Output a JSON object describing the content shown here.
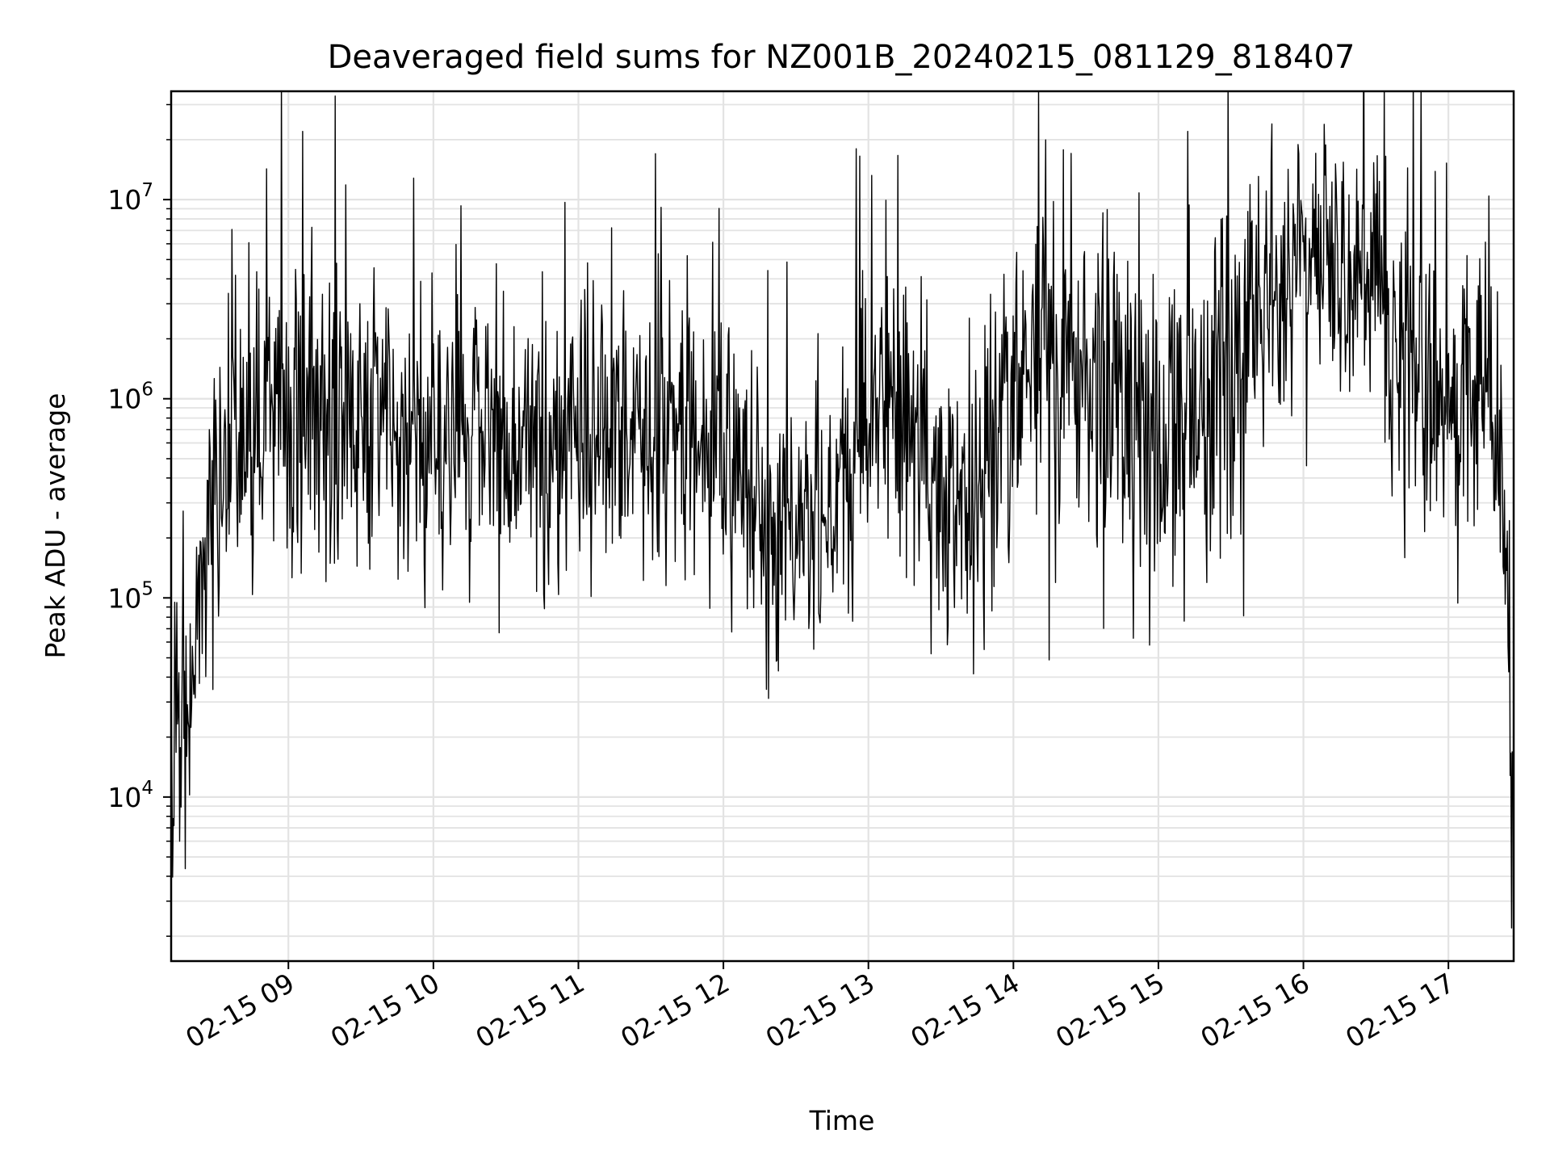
{
  "chart_data": {
    "type": "line",
    "title": "Deaveraged field sums for NZ001B_20240215_081129_818407",
    "xlabel": "Time",
    "ylabel": "Peak ADU - average",
    "x_axis": {
      "type": "time",
      "range": [
        "2024-02-15 08:11:29",
        "2024-02-15 17:27:00"
      ],
      "ticks": [
        "02-15 09",
        "02-15 10",
        "02-15 11",
        "02-15 12",
        "02-15 13",
        "02-15 14",
        "02-15 15",
        "02-15 16",
        "02-15 17"
      ],
      "tick_times": [
        "2024-02-15 09:00",
        "2024-02-15 10:00",
        "2024-02-15 11:00",
        "2024-02-15 12:00",
        "2024-02-15 13:00",
        "2024-02-15 14:00",
        "2024-02-15 15:00",
        "2024-02-15 16:00",
        "2024-02-15 17:00"
      ]
    },
    "y_axis": {
      "scale": "log",
      "range": [
        1500,
        35000000
      ],
      "ticks": [
        10000,
        100000,
        1000000,
        10000000
      ],
      "tick_labels": [
        {
          "base": "10",
          "exp": "4"
        },
        {
          "base": "10",
          "exp": "5"
        },
        {
          "base": "10",
          "exp": "6"
        },
        {
          "base": "10",
          "exp": "7"
        }
      ]
    },
    "grid": true,
    "series_color": "#000000",
    "envelope": {
      "description_units": "time vs Peak ADU - average (median and log-spread estimated from plot)",
      "points": [
        {
          "t": "2024-02-15 08:11:29",
          "median": 20000,
          "spread": 0.25
        },
        {
          "t": "2024-02-15 08:16:00",
          "median": 12000,
          "spread": 0.3
        },
        {
          "t": "2024-02-15 08:21:00",
          "median": 60000,
          "spread": 0.25
        },
        {
          "t": "2024-02-15 08:26:00",
          "median": 200000,
          "spread": 0.25
        },
        {
          "t": "2024-02-15 08:33:00",
          "median": 500000,
          "spread": 0.3
        },
        {
          "t": "2024-02-15 08:45:00",
          "median": 800000,
          "spread": 0.4
        },
        {
          "t": "2024-02-15 09:30:00",
          "median": 800000,
          "spread": 0.4
        },
        {
          "t": "2024-02-15 10:30:00",
          "median": 600000,
          "spread": 0.35
        },
        {
          "t": "2024-02-15 11:30:00",
          "median": 750000,
          "spread": 0.35
        },
        {
          "t": "2024-02-15 11:55:00",
          "median": 600000,
          "spread": 0.3
        },
        {
          "t": "2024-02-15 12:15:00",
          "median": 250000,
          "spread": 0.3
        },
        {
          "t": "2024-02-15 12:45:00",
          "median": 200000,
          "spread": 0.3
        },
        {
          "t": "2024-02-15 13:05:00",
          "median": 1000000,
          "spread": 0.35
        },
        {
          "t": "2024-02-15 13:30:00",
          "median": 400000,
          "spread": 0.35
        },
        {
          "t": "2024-02-15 13:45:00",
          "median": 300000,
          "spread": 0.35
        },
        {
          "t": "2024-02-15 14:00:00",
          "median": 1500000,
          "spread": 0.45
        },
        {
          "t": "2024-02-15 14:25:00",
          "median": 1500000,
          "spread": 0.45
        },
        {
          "t": "2024-02-15 15:00:00",
          "median": 700000,
          "spread": 0.45
        },
        {
          "t": "2024-02-15 15:30:00",
          "median": 1200000,
          "spread": 0.45
        },
        {
          "t": "2024-02-15 15:52:00",
          "median": 5000000,
          "spread": 0.3
        },
        {
          "t": "2024-02-15 16:25:00",
          "median": 5000000,
          "spread": 0.3
        },
        {
          "t": "2024-02-15 16:45:00",
          "median": 1200000,
          "spread": 0.4
        },
        {
          "t": "2024-02-15 17:20:00",
          "median": 1000000,
          "spread": 0.35
        },
        {
          "t": "2024-02-15 17:23:00",
          "median": 300000,
          "spread": 0.3
        },
        {
          "t": "2024-02-15 17:25:00",
          "median": 50000,
          "spread": 0.3
        },
        {
          "t": "2024-02-15 17:27:00",
          "median": 4000,
          "spread": 0.3
        }
      ]
    },
    "notable_values": [
      {
        "t": "2024-02-15 09:06",
        "value": 22000000
      },
      {
        "t": "2024-02-15 11:32",
        "value": 17000000
      },
      {
        "t": "2024-02-15 12:55",
        "value": 18000000
      },
      {
        "t": "2024-02-15 15:12",
        "value": 22000000
      },
      {
        "t": "2024-02-15 15:47",
        "value": 24000000
      },
      {
        "t": "2024-02-15 15:58",
        "value": 17000000
      },
      {
        "t": "2024-02-15 12:40",
        "value": 75000
      },
      {
        "t": "2024-02-15 13:48",
        "value": 55000
      },
      {
        "t": "2024-02-15 08:15",
        "value": 6000
      },
      {
        "t": "2024-02-15 17:26",
        "value": 2200
      }
    ]
  }
}
